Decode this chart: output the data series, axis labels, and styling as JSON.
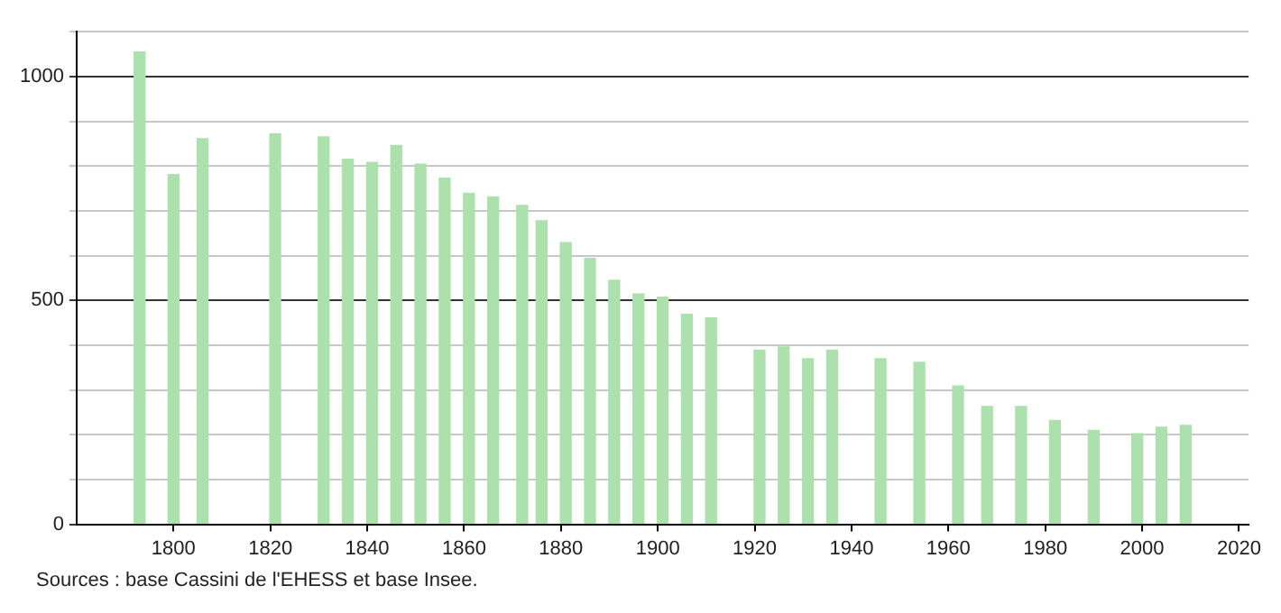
{
  "chart_data": {
    "type": "bar",
    "x": [
      1793,
      1800,
      1806,
      1821,
      1831,
      1836,
      1841,
      1846,
      1851,
      1856,
      1861,
      1866,
      1872,
      1876,
      1881,
      1886,
      1891,
      1896,
      1901,
      1906,
      1911,
      1921,
      1926,
      1931,
      1936,
      1946,
      1954,
      1962,
      1968,
      1975,
      1982,
      1990,
      1999,
      2004,
      2009
    ],
    "values": [
      1055,
      781,
      861,
      872,
      865,
      815,
      808,
      846,
      804,
      773,
      739,
      731,
      712,
      678,
      629,
      594,
      545,
      514,
      507,
      469,
      461,
      389,
      396,
      370,
      389,
      370,
      362,
      309,
      263,
      263,
      232,
      210,
      202,
      217,
      221
    ],
    "color": "#ace0ac",
    "xlim": [
      1780,
      2022
    ],
    "xticks": [
      1800,
      1820,
      1840,
      1860,
      1880,
      1900,
      1920,
      1940,
      1960,
      1980,
      2000,
      2020
    ],
    "ylim": [
      0,
      1100
    ],
    "yticks": [
      0,
      {
        "value": 100,
        "label": null
      },
      {
        "value": 200,
        "label": null
      },
      {
        "value": 300,
        "label": null
      },
      {
        "value": 400,
        "label": null
      },
      500,
      {
        "value": 600,
        "label": null
      },
      {
        "value": 700,
        "label": null
      },
      {
        "value": 800,
        "label": null
      },
      {
        "value": 900,
        "label": null
      },
      1000,
      {
        "value": 1100,
        "label": null
      }
    ],
    "grid": "y",
    "legend": false,
    "annotations": [
      "Sources : base Cassini de l'EHESS et base Insee."
    ]
  }
}
